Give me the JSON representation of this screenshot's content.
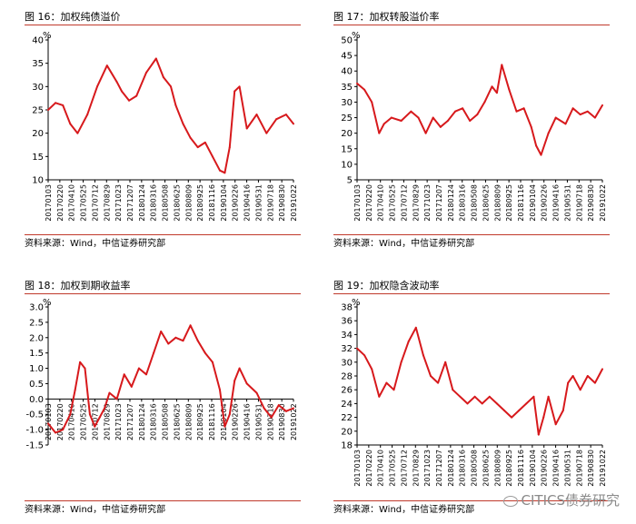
{
  "chart_data": [
    {
      "type": "line",
      "title": "图 16：加权纯债溢价",
      "unit": "%",
      "source": "资料来源：Wind，中信证券研究部",
      "color": "#d7191c",
      "ylim": [
        10,
        40
      ],
      "yticks": [
        10,
        15,
        20,
        25,
        30,
        35,
        40
      ],
      "x_tick_labels": [
        "20170103",
        "20170220",
        "20170410",
        "20170525",
        "20170712",
        "20170829",
        "20171023",
        "20171207",
        "20180124",
        "20180316",
        "20180508",
        "20180625",
        "20180809",
        "20180925",
        "20181116",
        "20190104",
        "20190226",
        "20190416",
        "20190531",
        "20190718",
        "20190830",
        "20191022"
      ],
      "x": [
        0,
        0.03,
        0.06,
        0.09,
        0.12,
        0.16,
        0.2,
        0.24,
        0.28,
        0.3,
        0.33,
        0.36,
        0.4,
        0.44,
        0.47,
        0.5,
        0.52,
        0.55,
        0.58,
        0.61,
        0.64,
        0.67,
        0.7,
        0.72,
        0.74,
        0.76,
        0.78,
        0.81,
        0.85,
        0.89,
        0.93,
        0.97,
        1
      ],
      "values": [
        25,
        26.5,
        26,
        22,
        20,
        24,
        30,
        34.5,
        31,
        29,
        27,
        28,
        33,
        36,
        32,
        30,
        26,
        22,
        19,
        17,
        18,
        15,
        12,
        11.5,
        17,
        29,
        30,
        21,
        24,
        20,
        23,
        24,
        22
      ]
    },
    {
      "type": "line",
      "title": "图 17：加权转股溢价率",
      "unit": "%",
      "source": "资料来源：Wind，中信证券研究部",
      "color": "#d7191c",
      "ylim": [
        5,
        50
      ],
      "yticks": [
        5,
        10,
        15,
        20,
        25,
        30,
        35,
        40,
        45,
        50
      ],
      "x_tick_labels": [
        "20170103",
        "20170220",
        "20170410",
        "20170525",
        "20170712",
        "20170829",
        "20171023",
        "20171207",
        "20180124",
        "20180316",
        "20180508",
        "20180625",
        "20180809",
        "20180925",
        "20181116",
        "20190104",
        "20190226",
        "20190416",
        "20190531",
        "20190718",
        "20190830",
        "20191022"
      ],
      "x": [
        0,
        0.03,
        0.06,
        0.09,
        0.11,
        0.14,
        0.18,
        0.22,
        0.25,
        0.28,
        0.31,
        0.34,
        0.37,
        0.4,
        0.43,
        0.46,
        0.49,
        0.52,
        0.55,
        0.57,
        0.59,
        0.62,
        0.65,
        0.68,
        0.71,
        0.73,
        0.75,
        0.78,
        0.81,
        0.85,
        0.88,
        0.91,
        0.94,
        0.97,
        1
      ],
      "values": [
        36,
        34,
        30,
        20,
        23,
        25,
        24,
        27,
        25,
        20,
        25,
        22,
        24,
        27,
        28,
        24,
        26,
        30,
        35,
        33,
        42,
        34,
        27,
        28,
        22,
        16,
        13,
        20,
        25,
        23,
        28,
        26,
        27,
        25,
        29
      ]
    },
    {
      "type": "line",
      "title": "图 18：加权到期收益率",
      "unit": "%",
      "source": "资料来源：Wind，中信证券研究部",
      "color": "#d7191c",
      "ylim": [
        -1.5,
        3.0
      ],
      "yticks": [
        -1.5,
        -1.0,
        -0.5,
        0.0,
        0.5,
        1.0,
        1.5,
        2.0,
        2.5,
        3.0
      ],
      "x_tick_labels": [
        "20170103",
        "20170220",
        "20170410",
        "20170525",
        "20170712",
        "20170829",
        "20171023",
        "20171207",
        "20180124",
        "20180316",
        "20180508",
        "20180625",
        "20180809",
        "20180925",
        "20181116",
        "20190104",
        "20190226",
        "20190416",
        "20190531",
        "20190718",
        "20190830",
        "20191022"
      ],
      "x": [
        0,
        0.03,
        0.06,
        0.09,
        0.11,
        0.13,
        0.15,
        0.17,
        0.19,
        0.21,
        0.23,
        0.25,
        0.28,
        0.31,
        0.34,
        0.37,
        0.4,
        0.43,
        0.46,
        0.49,
        0.52,
        0.55,
        0.58,
        0.61,
        0.64,
        0.67,
        0.7,
        0.72,
        0.74,
        0.76,
        0.78,
        0.81,
        0.85,
        0.88,
        0.91,
        0.94,
        0.97,
        1
      ],
      "values": [
        -0.8,
        -1.1,
        -1.0,
        -0.5,
        0.3,
        1.2,
        1.0,
        -0.5,
        -0.9,
        -0.6,
        -0.3,
        0.2,
        0.0,
        0.8,
        0.4,
        1.0,
        0.8,
        1.5,
        2.2,
        1.8,
        2.0,
        1.9,
        2.4,
        1.9,
        1.5,
        1.2,
        0.3,
        -0.9,
        -0.5,
        0.6,
        1.0,
        0.5,
        0.2,
        -0.3,
        -0.6,
        -0.2,
        -0.4,
        -0.3
      ]
    },
    {
      "type": "line",
      "title": "图 19：加权隐含波动率",
      "unit": "%",
      "source": "资料来源：Wind，中信证券研究部",
      "color": "#d7191c",
      "ylim": [
        18,
        38
      ],
      "yticks": [
        18,
        20,
        22,
        24,
        26,
        28,
        30,
        32,
        34,
        36,
        38
      ],
      "x_tick_labels": [
        "20170103",
        "20170220",
        "20170410",
        "20170525",
        "20170712",
        "20170829",
        "20171023",
        "20171207",
        "20180124",
        "20180316",
        "20180508",
        "20180625",
        "20180809",
        "20180925",
        "20181116",
        "20190104",
        "20190226",
        "20190416",
        "20190531",
        "20190718",
        "20190830",
        "20191022"
      ],
      "x": [
        0,
        0.03,
        0.06,
        0.09,
        0.12,
        0.15,
        0.18,
        0.21,
        0.24,
        0.27,
        0.3,
        0.33,
        0.36,
        0.39,
        0.42,
        0.45,
        0.48,
        0.51,
        0.54,
        0.57,
        0.6,
        0.63,
        0.66,
        0.69,
        0.72,
        0.74,
        0.76,
        0.78,
        0.81,
        0.84,
        0.86,
        0.88,
        0.91,
        0.94,
        0.97,
        1
      ],
      "values": [
        32,
        31,
        29,
        25,
        27,
        26,
        30,
        33,
        35,
        31,
        28,
        27,
        30,
        26,
        25,
        24,
        25,
        24,
        25,
        24,
        23,
        22,
        23,
        24,
        25,
        19.5,
        22,
        25,
        21,
        23,
        27,
        28,
        26,
        28,
        27,
        29
      ]
    }
  ],
  "watermark": "CITICS债券研究"
}
